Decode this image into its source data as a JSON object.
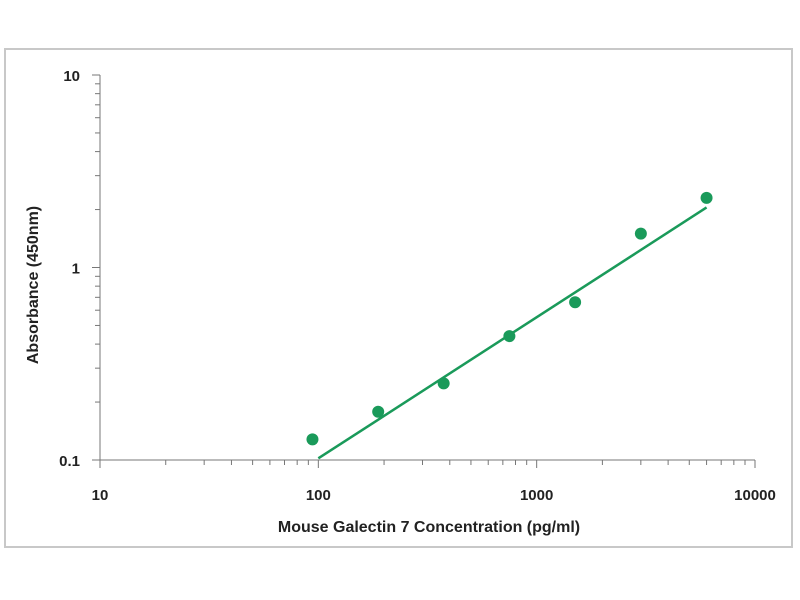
{
  "chart_data": {
    "type": "scatter",
    "title": "",
    "xlabel": "Mouse Galectin 7 Concentration (pg/ml)",
    "ylabel": "Absorbance (450nm)",
    "xscale": "log",
    "yscale": "log",
    "xlim": [
      10,
      10000
    ],
    "ylim": [
      0.1,
      10
    ],
    "x_ticks": [
      "10",
      "100",
      "1000",
      "10000"
    ],
    "y_ticks": [
      "0.1",
      "1",
      "10"
    ],
    "grid": false,
    "legend": "none",
    "series": [
      {
        "points": [
          {
            "x": 94,
            "y": 0.128
          },
          {
            "x": 188,
            "y": 0.178
          },
          {
            "x": 375,
            "y": 0.25
          },
          {
            "x": 750,
            "y": 0.44
          },
          {
            "x": 1500,
            "y": 0.66
          },
          {
            "x": 3000,
            "y": 1.5
          },
          {
            "x": 6000,
            "y": 2.3
          }
        ]
      }
    ],
    "fit_line": {
      "x": [
        100,
        6000
      ],
      "y": [
        0.102,
        2.05
      ]
    },
    "color": "#1a9a5a"
  }
}
